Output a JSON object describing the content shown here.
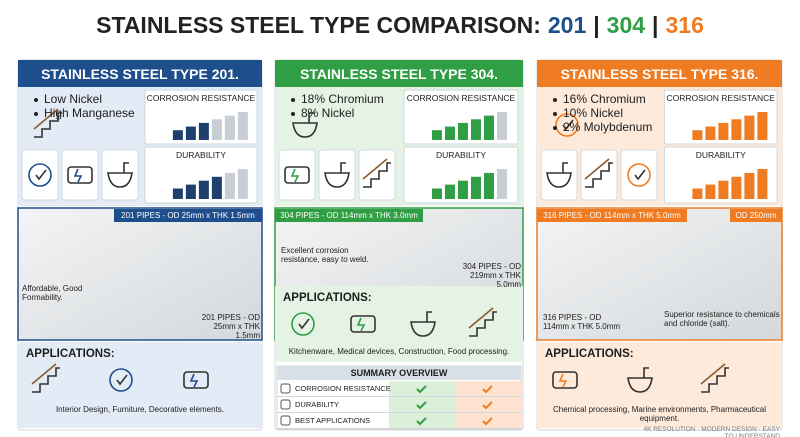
{
  "title": {
    "text": "STAINLESS STEEL TYPE COMPARISON:",
    "grades": [
      "201",
      "304",
      "316"
    ],
    "separator": "|"
  },
  "columns": [
    {
      "header": "STAINLESS STEEL TYPE 201.",
      "features": [
        "Low Nickel",
        "High Manganese"
      ],
      "metrics": [
        "CORROSION RESISTANCE",
        "DURABILITY"
      ],
      "photo_tags": [
        "201 PIPES - OD 25mm x THK 1.5mm"
      ],
      "photo_notes": [
        "Affordable, Good Formability.",
        "201 PIPES - OD 25mm x THK 1.5mm"
      ],
      "applications_heading": "APPLICATIONS:",
      "applications": "Interior Design, Furniture, Decorative elements."
    },
    {
      "header": "STAINLESS STEEL TYPE 304.",
      "features": [
        "18% Chromium",
        "8% Nickel"
      ],
      "metrics": [
        "CORROSION RESISTANCE",
        "DURABILITY"
      ],
      "photo_tags": [
        "304 PIPES - OD 114mm x THK 3.0mm"
      ],
      "photo_notes": [
        "Excellent corrosion resistance, easy to weld.",
        "304 PIPES - OD 219mm x THK 5.0mm"
      ],
      "applications_heading": "APPLICATIONS:",
      "applications": "Kitchenware, Medical devices, Construction, Food processing."
    },
    {
      "header": "STAINLESS STEEL TYPE 316.",
      "features": [
        "16% Chromium",
        "10% Nickel",
        "2% Molybdenum"
      ],
      "metrics": [
        "CORROSION RESISTANCE",
        "DURABILITY"
      ],
      "photo_tags": [
        "316 PIPES - OD 114mm x THK 5.0mm",
        "OD 250mm"
      ],
      "photo_notes": [
        "316 PIPES - OD 114mm x THK 5.0mm",
        "Superior resistance to chemicals and chloride (salt)."
      ],
      "applications_heading": "APPLICATIONS:",
      "applications": "Chemical processing, Marine environments, Pharmaceutical equipment."
    }
  ],
  "summary": {
    "title": "SUMMARY OVERVIEW",
    "rows": [
      "CORROSION RESISTANCE",
      "DURABILITY",
      "BEST APPLICATIONS"
    ]
  },
  "footer": "4K RESOLUTION · MODERN DESIGN · EASY TO UNDERSTAND"
}
